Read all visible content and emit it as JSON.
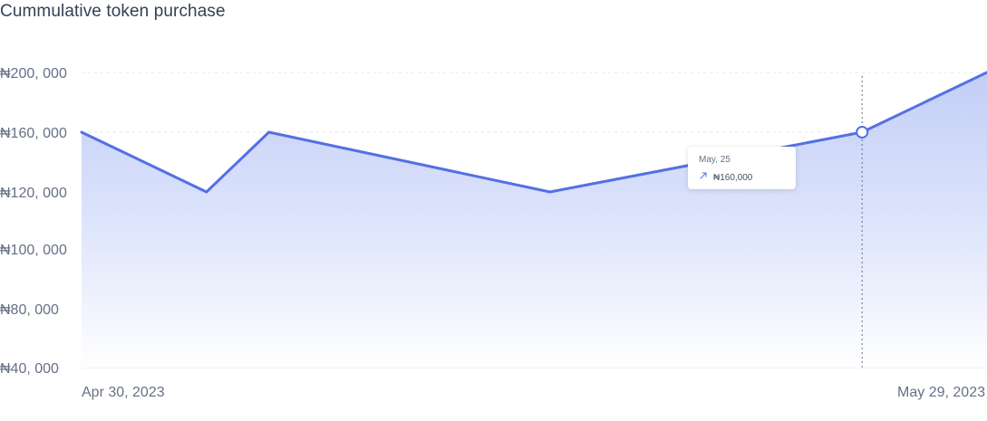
{
  "title": "Cummulative token purchase",
  "chart_data": {
    "type": "area",
    "title": "Cummulative token purchase",
    "xlabel": "",
    "ylabel": "",
    "y_ticks": [
      "₦200, 000",
      "₦160, 000",
      "₦120, 000",
      "₦100, 000",
      "₦80, 000",
      "₦40, 000"
    ],
    "x_ticks": [
      "Apr 30, 2023",
      "May 29, 2023"
    ],
    "x": [
      "Apr 30, 2023",
      "May 4, 2023",
      "May 6, 2023",
      "May 15, 2023",
      "May 25, 2023",
      "May 29, 2023"
    ],
    "y": [
      160000,
      120000,
      160000,
      120000,
      160000,
      200000
    ],
    "grid": true,
    "line_color": "#5470E3",
    "fill_color_top": "#C5D1F6",
    "fill_color_bottom": "#FFFFFF",
    "grid_color": "#E4E7EC",
    "highlighted_point": {
      "x": "May 25, 2023",
      "y": 160000
    }
  },
  "tooltip": {
    "date": "May, 25",
    "value": "₦160,000",
    "icon": "arrow-up-right-icon"
  }
}
